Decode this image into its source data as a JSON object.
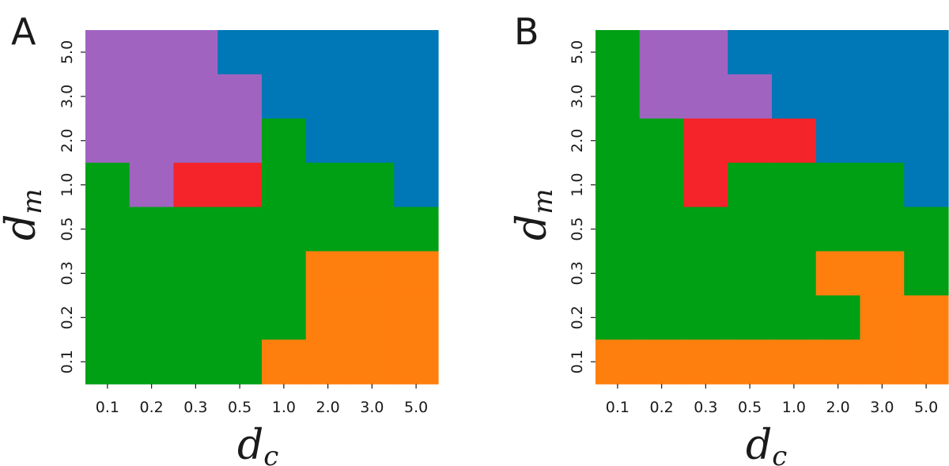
{
  "palette": {
    "purple": "#a064c0",
    "blue": "#0077b6",
    "green": "#00a015",
    "red": "#f5232a",
    "orange": "#ff7f0e"
  },
  "chart_data": [
    {
      "type": "heatmap",
      "panel": "A",
      "xlabel_main": "d",
      "xlabel_sub": "c",
      "ylabel_main": "d",
      "ylabel_sub": "m",
      "x_ticks": [
        "0.1",
        "0.2",
        "0.3",
        "0.5",
        "1.0",
        "2.0",
        "3.0",
        "5.0"
      ],
      "y_ticks": [
        "5.0",
        "3.0",
        "2.0",
        "1.0",
        "0.5",
        "0.3",
        "0.2",
        "0.1"
      ],
      "grid_rows_top_to_bottom": [
        [
          "purple",
          "purple",
          "purple",
          "blue",
          "blue",
          "blue",
          "blue",
          "blue"
        ],
        [
          "purple",
          "purple",
          "purple",
          "purple",
          "blue",
          "blue",
          "blue",
          "blue"
        ],
        [
          "purple",
          "purple",
          "purple",
          "purple",
          "green",
          "blue",
          "blue",
          "blue"
        ],
        [
          "green",
          "purple",
          "red",
          "red",
          "green",
          "green",
          "green",
          "blue"
        ],
        [
          "green",
          "green",
          "green",
          "green",
          "green",
          "green",
          "green",
          "green"
        ],
        [
          "green",
          "green",
          "green",
          "green",
          "green",
          "orange",
          "orange",
          "orange"
        ],
        [
          "green",
          "green",
          "green",
          "green",
          "green",
          "orange",
          "orange",
          "orange"
        ],
        [
          "green",
          "green",
          "green",
          "green",
          "orange",
          "orange",
          "orange",
          "orange"
        ]
      ]
    },
    {
      "type": "heatmap",
      "panel": "B",
      "xlabel_main": "d",
      "xlabel_sub": "c",
      "ylabel_main": "d",
      "ylabel_sub": "m",
      "x_ticks": [
        "0.1",
        "0.2",
        "0.3",
        "0.5",
        "1.0",
        "2.0",
        "3.0",
        "5.0"
      ],
      "y_ticks": [
        "5.0",
        "3.0",
        "2.0",
        "1.0",
        "0.5",
        "0.3",
        "0.2",
        "0.1"
      ],
      "grid_rows_top_to_bottom": [
        [
          "green",
          "purple",
          "purple",
          "blue",
          "blue",
          "blue",
          "blue",
          "blue"
        ],
        [
          "green",
          "purple",
          "purple",
          "purple",
          "blue",
          "blue",
          "blue",
          "blue"
        ],
        [
          "green",
          "green",
          "red",
          "red",
          "red",
          "blue",
          "blue",
          "blue"
        ],
        [
          "green",
          "green",
          "red",
          "green",
          "green",
          "green",
          "green",
          "blue"
        ],
        [
          "green",
          "green",
          "green",
          "green",
          "green",
          "green",
          "green",
          "green"
        ],
        [
          "green",
          "green",
          "green",
          "green",
          "green",
          "orange",
          "orange",
          "green"
        ],
        [
          "green",
          "green",
          "green",
          "green",
          "green",
          "green",
          "orange",
          "orange"
        ],
        [
          "orange",
          "orange",
          "orange",
          "orange",
          "orange",
          "orange",
          "orange",
          "orange"
        ]
      ]
    }
  ]
}
